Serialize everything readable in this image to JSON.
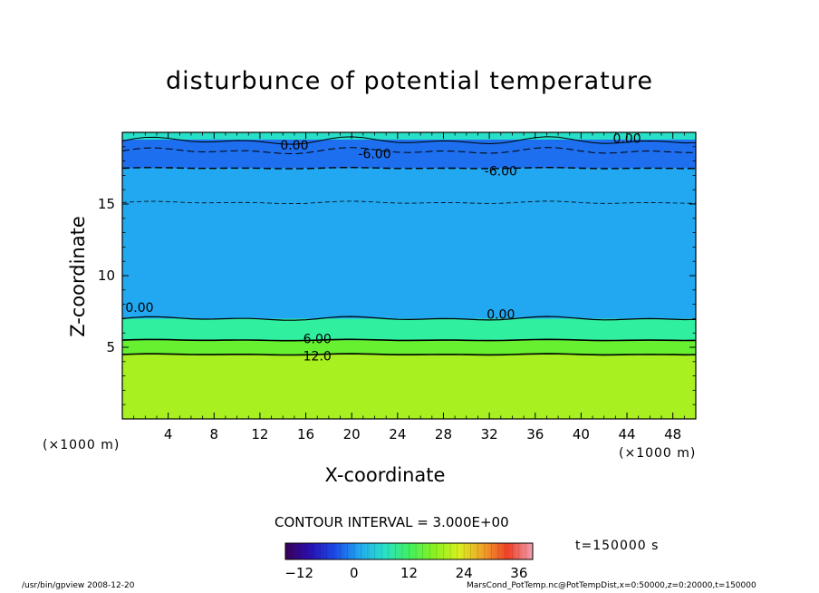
{
  "title": "disturbunce of potential temperature",
  "footer_left": "/usr/bin/gpview   2008-12-20",
  "footer_right": "MarsCond_PotTemp.nc@PotTempDist,x=0:50000,z=0:20000,t=150000",
  "contour_interval": "CONTOUR INTERVAL = 3.000E+00",
  "time_label": "t=150000  s",
  "chart_data": {
    "type": "heatmap",
    "title": "disturbunce of potential temperature",
    "xlabel": "X-coordinate",
    "ylabel": "Z-coordinate",
    "x_unit": "(×1000 m)",
    "y_unit": "(×1000 m)",
    "xlim": [
      0,
      50
    ],
    "ylim": [
      0,
      20
    ],
    "x_ticks": [
      4,
      8,
      12,
      16,
      20,
      24,
      28,
      32,
      36,
      40,
      44,
      48
    ],
    "y_ticks": [
      5,
      10,
      15
    ],
    "color_levels": [
      -12,
      0,
      12,
      24,
      36
    ],
    "color_range": [
      -15,
      39
    ],
    "contour_interval": 3.0,
    "value_layers": [
      {
        "z_range": [
          0,
          4.5
        ],
        "value": 15
      },
      {
        "z_range": [
          4.5,
          5.5
        ],
        "value": 9
      },
      {
        "z_range": [
          5.5,
          7
        ],
        "value": 3
      },
      {
        "z_range": [
          7,
          17.5
        ],
        "value": -3
      },
      {
        "z_range": [
          17.5,
          19.5
        ],
        "value": -6
      }
    ],
    "contour_labels": [
      {
        "text": "0.00",
        "x": 15.0,
        "z": 19.1
      },
      {
        "text": "-6.00",
        "x": 22.0,
        "z": 18.5
      },
      {
        "text": "0.00",
        "x": 44.0,
        "z": 19.6
      },
      {
        "text": "-6.00",
        "x": 33.0,
        "z": 17.3
      },
      {
        "text": "0.00",
        "x": 33.0,
        "z": 7.3
      },
      {
        "text": "0.00",
        "x": 1.5,
        "z": 7.8
      },
      {
        "text": "6.00",
        "x": 17.0,
        "z": 5.6
      },
      {
        "text": "12.0",
        "x": 17.0,
        "z": 4.4
      }
    ],
    "time": "t=150000  s"
  }
}
